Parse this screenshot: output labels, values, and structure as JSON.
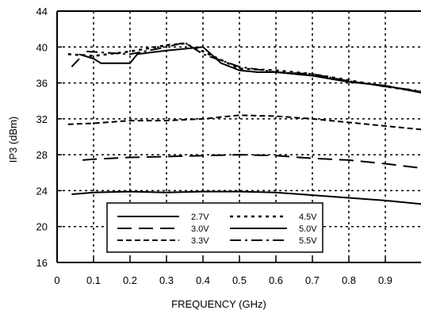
{
  "chart_data": {
    "type": "line",
    "xlabel": "FREQUENCY (GHz)",
    "ylabel": "IP3 (dBm)",
    "xlim": [
      0,
      1.0
    ],
    "ylim": [
      16,
      44
    ],
    "x_ticks": [
      "0",
      "0.1",
      "0.2",
      "0.3",
      "0.4",
      "0.5",
      "0.6",
      "0.7",
      "0.8",
      "0.9"
    ],
    "y_ticks": [
      "16",
      "20",
      "24",
      "28",
      "32",
      "36",
      "40",
      "44"
    ],
    "grid": true,
    "legend_position": "bottom-left",
    "series": [
      {
        "name": "2.7V",
        "style": "solid",
        "points": [
          [
            0.04,
            23.6
          ],
          [
            0.1,
            23.8
          ],
          [
            0.2,
            23.9
          ],
          [
            0.3,
            23.8
          ],
          [
            0.4,
            23.9
          ],
          [
            0.5,
            23.9
          ],
          [
            0.6,
            23.8
          ],
          [
            0.7,
            23.5
          ],
          [
            0.8,
            23.2
          ],
          [
            0.9,
            22.9
          ],
          [
            1.0,
            22.5
          ]
        ]
      },
      {
        "name": "3.0V",
        "style": "long-dash",
        "points": [
          [
            0.07,
            27.4
          ],
          [
            0.1,
            27.5
          ],
          [
            0.2,
            27.7
          ],
          [
            0.3,
            27.8
          ],
          [
            0.4,
            27.9
          ],
          [
            0.5,
            28.0
          ],
          [
            0.6,
            27.9
          ],
          [
            0.7,
            27.6
          ],
          [
            0.8,
            27.4
          ],
          [
            0.9,
            27.0
          ],
          [
            1.0,
            26.5
          ]
        ]
      },
      {
        "name": "3.3V",
        "style": "short-dash",
        "points": [
          [
            0.03,
            31.4
          ],
          [
            0.1,
            31.5
          ],
          [
            0.2,
            31.8
          ],
          [
            0.3,
            31.8
          ],
          [
            0.4,
            32.0
          ],
          [
            0.5,
            32.4
          ],
          [
            0.6,
            32.3
          ],
          [
            0.7,
            32.0
          ],
          [
            0.8,
            31.6
          ],
          [
            0.9,
            31.2
          ],
          [
            1.0,
            30.8
          ]
        ]
      },
      {
        "name": "4.5V",
        "style": "dotted",
        "points": [
          [
            0.03,
            39.2
          ],
          [
            0.1,
            39.0
          ],
          [
            0.2,
            39.5
          ],
          [
            0.3,
            40.2
          ],
          [
            0.35,
            40.4
          ],
          [
            0.4,
            39.5
          ],
          [
            0.5,
            37.6
          ],
          [
            0.6,
            37.4
          ],
          [
            0.7,
            37.0
          ],
          [
            0.8,
            36.3
          ],
          [
            0.9,
            35.6
          ],
          [
            1.0,
            35.0
          ]
        ]
      },
      {
        "name": "5.0V",
        "style": "solid",
        "points": [
          [
            0.06,
            39.2
          ],
          [
            0.1,
            38.7
          ],
          [
            0.12,
            38.2
          ],
          [
            0.2,
            38.2
          ],
          [
            0.22,
            39.2
          ],
          [
            0.3,
            39.6
          ],
          [
            0.4,
            40.0
          ],
          [
            0.45,
            38.2
          ],
          [
            0.5,
            37.4
          ],
          [
            0.55,
            37.2
          ],
          [
            0.6,
            37.2
          ],
          [
            0.7,
            36.8
          ],
          [
            0.8,
            36.1
          ],
          [
            0.9,
            35.7
          ],
          [
            1.0,
            34.9
          ]
        ]
      },
      {
        "name": "5.5V",
        "style": "dash-dot",
        "points": [
          [
            0.04,
            37.8
          ],
          [
            0.08,
            39.5
          ],
          [
            0.2,
            39.2
          ],
          [
            0.3,
            40.0
          ],
          [
            0.35,
            40.5
          ],
          [
            0.4,
            39.2
          ],
          [
            0.5,
            37.8
          ],
          [
            0.6,
            37.2
          ],
          [
            0.7,
            37.0
          ],
          [
            0.8,
            36.2
          ],
          [
            0.9,
            35.6
          ],
          [
            1.0,
            35.1
          ]
        ]
      }
    ],
    "colors": {
      "line": "#000000",
      "grid": "#000000",
      "background": "#ffffff"
    }
  }
}
